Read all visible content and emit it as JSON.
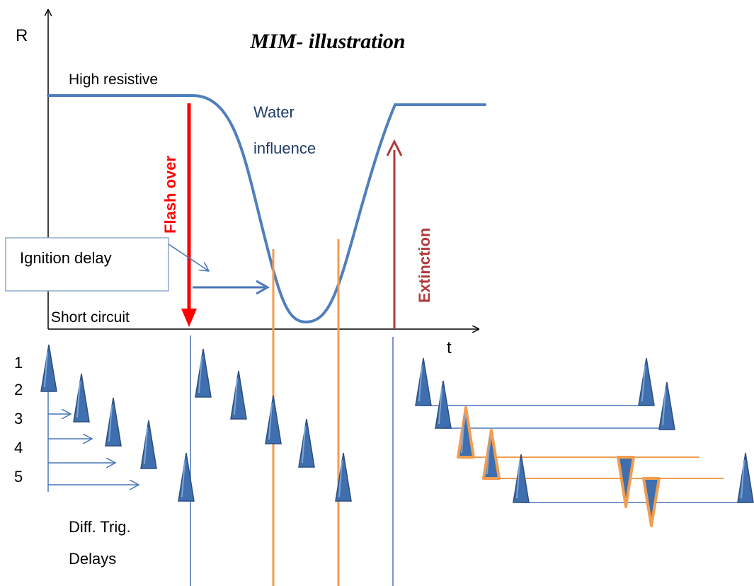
{
  "title": "MIM- illustration",
  "axes": {
    "y_label": "R",
    "x_label": "t"
  },
  "levels": {
    "high": "High resistive",
    "low": "Short circuit"
  },
  "curve_label": [
    "Water",
    "influence"
  ],
  "events": {
    "flash_over": "Flash over",
    "extinction": "Extinction"
  },
  "callout": {
    "text": "Ignition delay"
  },
  "row_numbers": [
    "1",
    "2",
    "3",
    "4",
    "5"
  ],
  "delay_caption": [
    "Diff. Trig.",
    "Delays"
  ],
  "colors": {
    "axis": "#000000",
    "curve": "#4f7fbd",
    "pulse_fill": "#3f6fae",
    "pulse_stroke": "#2b4f80",
    "blue_line": "#4a76b8",
    "orange": "#f29d50",
    "flash_over": "#ff0000",
    "extinction": "#b23a3a",
    "callout_border": "#8fa8cf"
  }
}
